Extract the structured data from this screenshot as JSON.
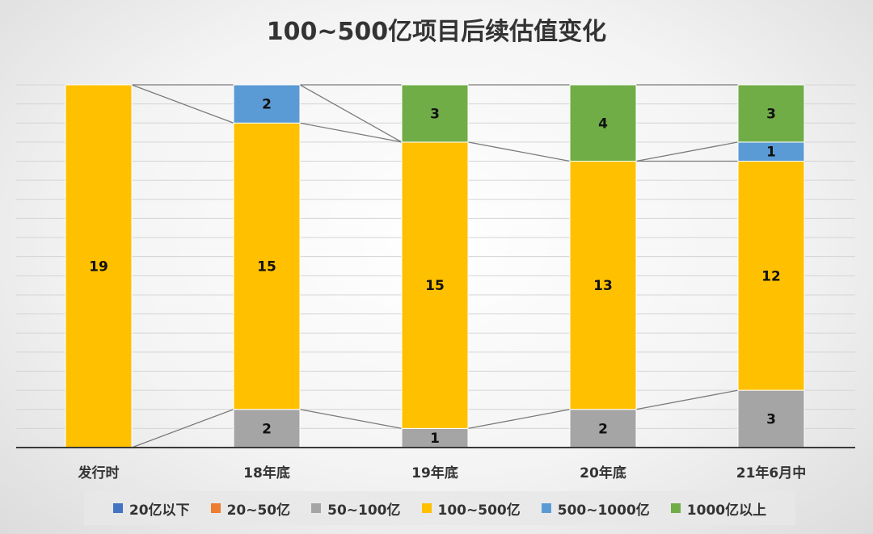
{
  "chart_data": {
    "type": "bar",
    "stacked": true,
    "title": "100~500亿项目后续估值变化",
    "categories": [
      "发行时",
      "18年底",
      "19年底",
      "20年底",
      "21年6月中"
    ],
    "series": [
      {
        "name": "20亿以下",
        "color": "#4472c4",
        "values": [
          0,
          0,
          0,
          0,
          0
        ]
      },
      {
        "name": "20~50亿",
        "color": "#ed7d31",
        "values": [
          0,
          0,
          0,
          0,
          0
        ]
      },
      {
        "name": "50~100亿",
        "color": "#a5a5a5",
        "values": [
          0,
          2,
          1,
          2,
          3
        ]
      },
      {
        "name": "100~500亿",
        "color": "#ffc000",
        "values": [
          19,
          15,
          15,
          13,
          12
        ]
      },
      {
        "name": "500~1000亿",
        "color": "#5b9bd5",
        "values": [
          0,
          2,
          0,
          0,
          1
        ]
      },
      {
        "name": "1000亿以上",
        "color": "#70ad47",
        "values": [
          0,
          0,
          3,
          4,
          3
        ]
      }
    ],
    "ylim": [
      0,
      19
    ],
    "grid": true,
    "y_axis_labels_shown": false,
    "connector_lines": true,
    "legend_position": "bottom"
  }
}
